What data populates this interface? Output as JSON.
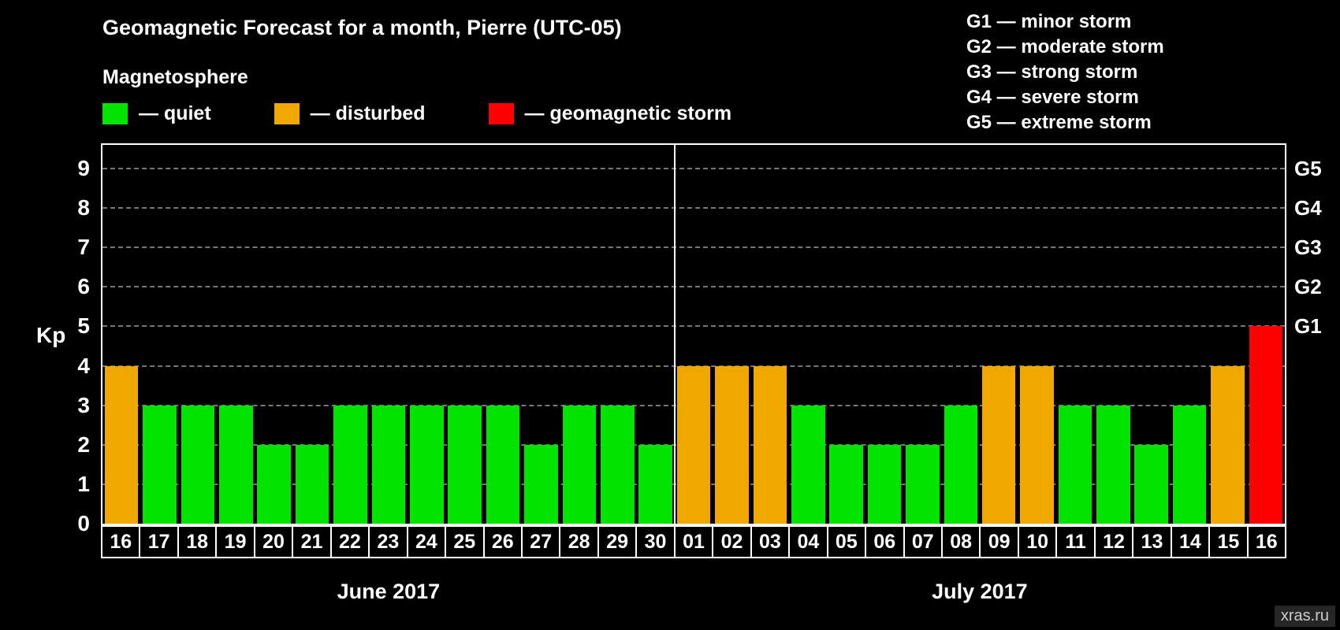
{
  "title": "Geomagnetic Forecast for a month, Pierre (UTC-05)",
  "legend": {
    "heading": "Magnetosphere",
    "items": [
      {
        "key": "quiet",
        "label": "— quiet",
        "color": "#00e400"
      },
      {
        "key": "disturbed",
        "label": "— disturbed",
        "color": "#f0a800"
      },
      {
        "key": "storm",
        "label": "— geomagnetic storm",
        "color": "#ff0000"
      }
    ]
  },
  "storm_scale": [
    {
      "label": "G1 — minor storm"
    },
    {
      "label": "G2 — moderate storm"
    },
    {
      "label": "G3 — strong storm"
    },
    {
      "label": "G4 — severe storm"
    },
    {
      "label": "G5 — extreme storm"
    }
  ],
  "watermark": "xras.ru",
  "chart_data": {
    "type": "bar",
    "title": "Geomagnetic Forecast for a month, Pierre (UTC-05)",
    "ylabel": "Kp",
    "ylim": [
      0,
      9.6
    ],
    "yticks": [
      0,
      1,
      2,
      3,
      4,
      5,
      6,
      7,
      8,
      9
    ],
    "grid": "dashed horizontal",
    "right_axis_labels": [
      {
        "label": "G1",
        "kp": 5
      },
      {
        "label": "G2",
        "kp": 6
      },
      {
        "label": "G3",
        "kp": 7
      },
      {
        "label": "G4",
        "kp": 8
      },
      {
        "label": "G5",
        "kp": 9
      }
    ],
    "color_thresholds": {
      "quiet_max_kp": 3,
      "disturbed_max_kp": 4
    },
    "months": [
      {
        "label": "June 2017",
        "days": [
          "16",
          "17",
          "18",
          "19",
          "20",
          "21",
          "22",
          "23",
          "24",
          "25",
          "26",
          "27",
          "28",
          "29",
          "30"
        ],
        "values": [
          4,
          3,
          3,
          3,
          2,
          2,
          3,
          3,
          3,
          3,
          3,
          2,
          3,
          3,
          2
        ]
      },
      {
        "label": "July 2017",
        "days": [
          "01",
          "02",
          "03",
          "04",
          "05",
          "06",
          "07",
          "08",
          "09",
          "10",
          "11",
          "12",
          "13",
          "14",
          "15",
          "16"
        ],
        "values": [
          4,
          4,
          4,
          3,
          2,
          2,
          2,
          3,
          4,
          4,
          3,
          3,
          2,
          3,
          4,
          5
        ]
      }
    ]
  }
}
